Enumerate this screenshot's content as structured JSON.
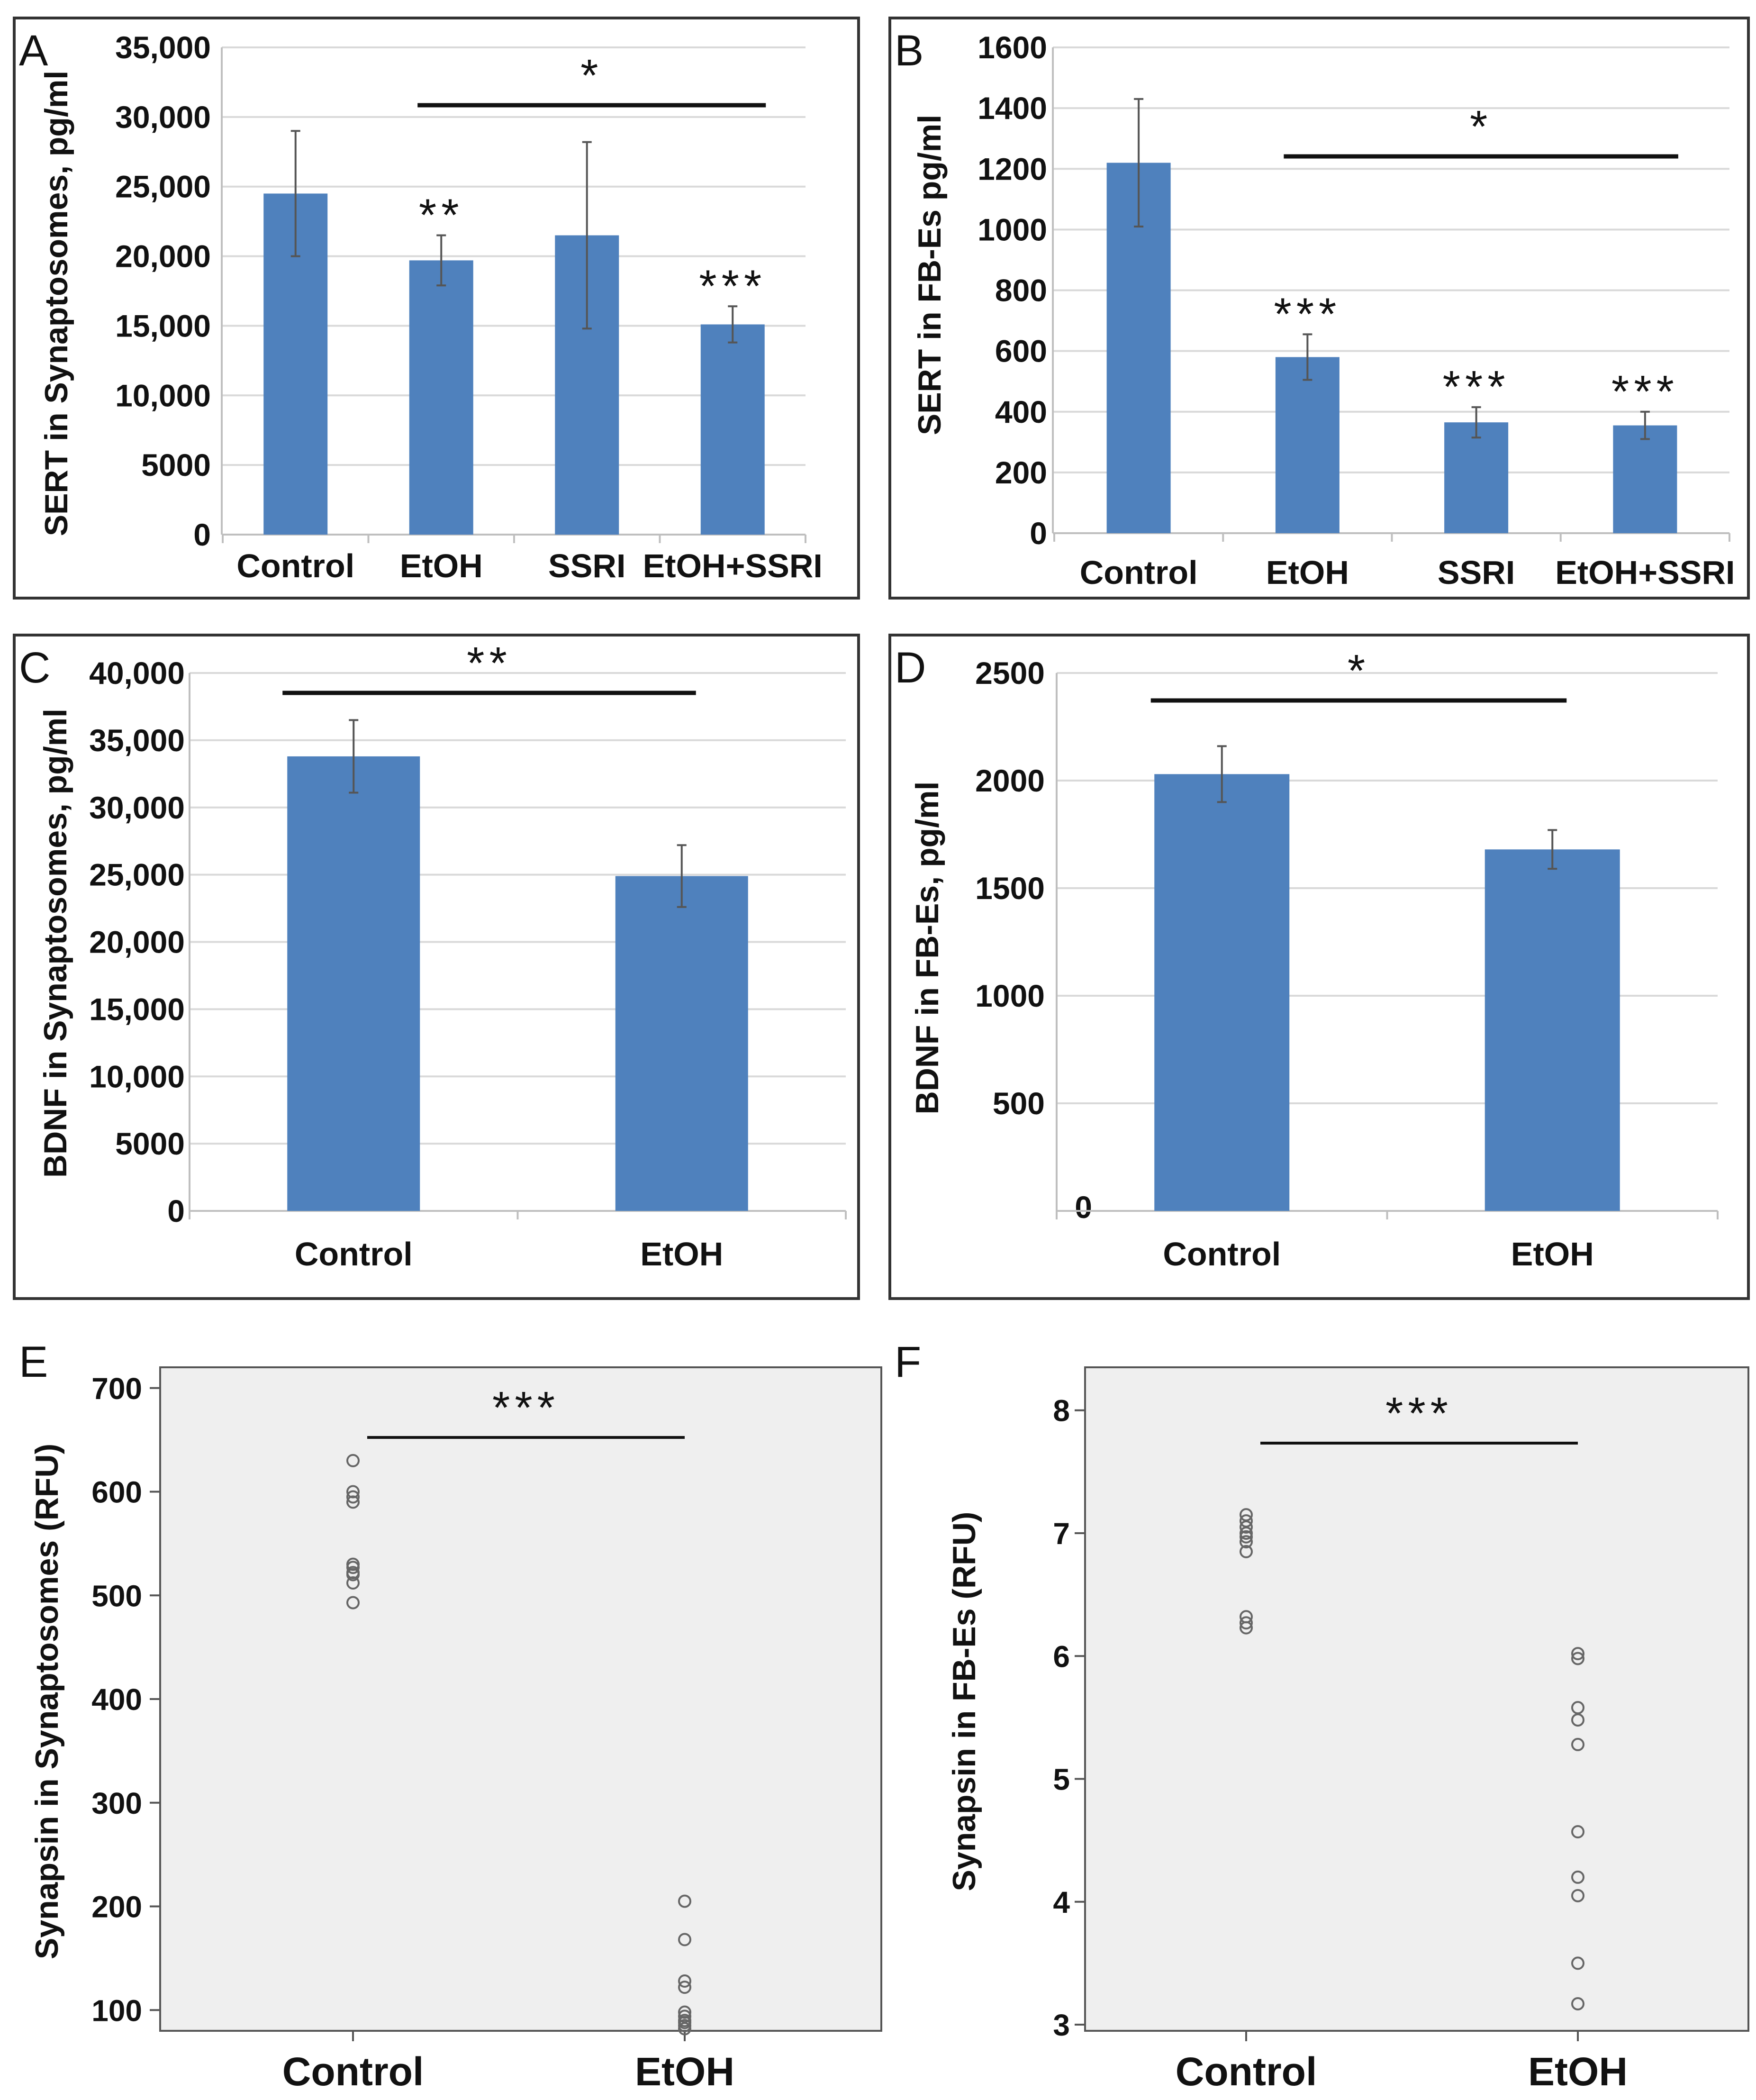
{
  "chart_data": [
    {
      "panel": "A",
      "type": "bar",
      "categories": [
        "Control",
        "EtOH",
        "SSRI",
        "EtOH+SSRI"
      ],
      "values": [
        24500,
        19700,
        21500,
        15100
      ],
      "errors": [
        4500,
        1800,
        6700,
        1300
      ],
      "significance": [
        "",
        "**",
        "",
        "***"
      ],
      "bracket": {
        "from": 1,
        "to": 3,
        "label": "*"
      },
      "ylabel": "SERT in Synaptosomes, pg/ml",
      "ylim": [
        0,
        35000
      ],
      "yticks": [
        0,
        5000,
        10000,
        15000,
        20000,
        25000,
        30000,
        35000
      ],
      "ytick_labels": [
        "0",
        "5000",
        "10,000",
        "15,000",
        "20,000",
        "25,000",
        "30,000",
        "35,000"
      ],
      "bar_color": "#4f81bd",
      "grid": true
    },
    {
      "panel": "B",
      "type": "bar",
      "categories": [
        "Control",
        "EtOH",
        "SSRI",
        "EtOH+SSRI"
      ],
      "values": [
        1220,
        580,
        365,
        355
      ],
      "errors": [
        210,
        75,
        50,
        45
      ],
      "significance": [
        "",
        "***",
        "***",
        "***"
      ],
      "bracket": {
        "from": 1,
        "to": 3,
        "label": "*"
      },
      "ylabel": "SERT in FB-Es pg/ml",
      "ylim": [
        0,
        1600
      ],
      "yticks": [
        0,
        200,
        400,
        600,
        800,
        1000,
        1200,
        1400,
        1600
      ],
      "ytick_labels": [
        "0",
        "200",
        "400",
        "600",
        "800",
        "1000",
        "1200",
        "1400",
        "1600"
      ],
      "bar_color": "#4f81bd",
      "grid": true
    },
    {
      "panel": "C",
      "type": "bar",
      "categories": [
        "Control",
        "EtOH"
      ],
      "values": [
        33800,
        24900
      ],
      "errors": [
        2700,
        2300
      ],
      "significance": [
        "",
        ""
      ],
      "bracket": {
        "from": 0,
        "to": 1,
        "label": "**"
      },
      "ylabel": "BDNF in Synaptosomes, pg/ml",
      "ylim": [
        0,
        40000
      ],
      "yticks": [
        0,
        5000,
        10000,
        15000,
        20000,
        25000,
        30000,
        35000,
        40000
      ],
      "ytick_labels": [
        "0",
        "5000",
        "10,000",
        "15,000",
        "20,000",
        "25,000",
        "30,000",
        "35,000",
        "40,000"
      ],
      "bar_color": "#4f81bd",
      "grid": true
    },
    {
      "panel": "D",
      "type": "bar",
      "categories": [
        "Control",
        "EtOH"
      ],
      "values": [
        2030,
        1680
      ],
      "errors": [
        130,
        90
      ],
      "significance": [
        "",
        ""
      ],
      "bracket": {
        "from": 0,
        "to": 1,
        "label": "*"
      },
      "ylabel": "BDNF in FB-Es, pg/ml",
      "ylim": [
        0,
        2500
      ],
      "yticks": [
        0,
        500,
        1000,
        1500,
        2000,
        2500
      ],
      "ytick_labels": [
        "0",
        "500",
        "1000",
        "1500",
        "2000",
        "2500"
      ],
      "bar_color": "#4f81bd",
      "grid": true
    },
    {
      "panel": "E",
      "type": "scatter",
      "categories": [
        "Control",
        "EtOH"
      ],
      "series": [
        {
          "name": "Control",
          "values": [
            630,
            600,
            595,
            590,
            530,
            527,
            522,
            520,
            512,
            493
          ]
        },
        {
          "name": "EtOH",
          "values": [
            205,
            168,
            128,
            122,
            98,
            94,
            90,
            88,
            85,
            82
          ]
        }
      ],
      "bracket": {
        "from": 0,
        "to": 1,
        "label": "***"
      },
      "ylabel": "Synapsin in Synaptosomes (RFU)",
      "ylim": [
        80,
        720
      ],
      "yticks": [
        100,
        200,
        300,
        400,
        500,
        600,
        700
      ],
      "ytick_labels": [
        "100",
        "200",
        "300",
        "400",
        "500",
        "600",
        "700"
      ],
      "background": "#efefef"
    },
    {
      "panel": "F",
      "type": "scatter",
      "categories": [
        "Control",
        "EtOH"
      ],
      "series": [
        {
          "name": "Control",
          "values": [
            7.15,
            7.1,
            7.05,
            7.0,
            6.97,
            6.93,
            6.85,
            6.32,
            6.27,
            6.23
          ]
        },
        {
          "name": "EtOH",
          "values": [
            6.02,
            5.98,
            5.58,
            5.48,
            5.28,
            4.57,
            4.2,
            4.05,
            3.5,
            3.17
          ]
        }
      ],
      "bracket": {
        "from": 0,
        "to": 1,
        "label": "***"
      },
      "ylabel": "Synapsin in FB-Es (RFU)",
      "ylim": [
        2.95,
        8.35
      ],
      "yticks": [
        3,
        4,
        5,
        6,
        7,
        8
      ],
      "ytick_labels": [
        "3",
        "4",
        "5",
        "6",
        "7",
        "8"
      ],
      "background": "#efefef"
    }
  ]
}
